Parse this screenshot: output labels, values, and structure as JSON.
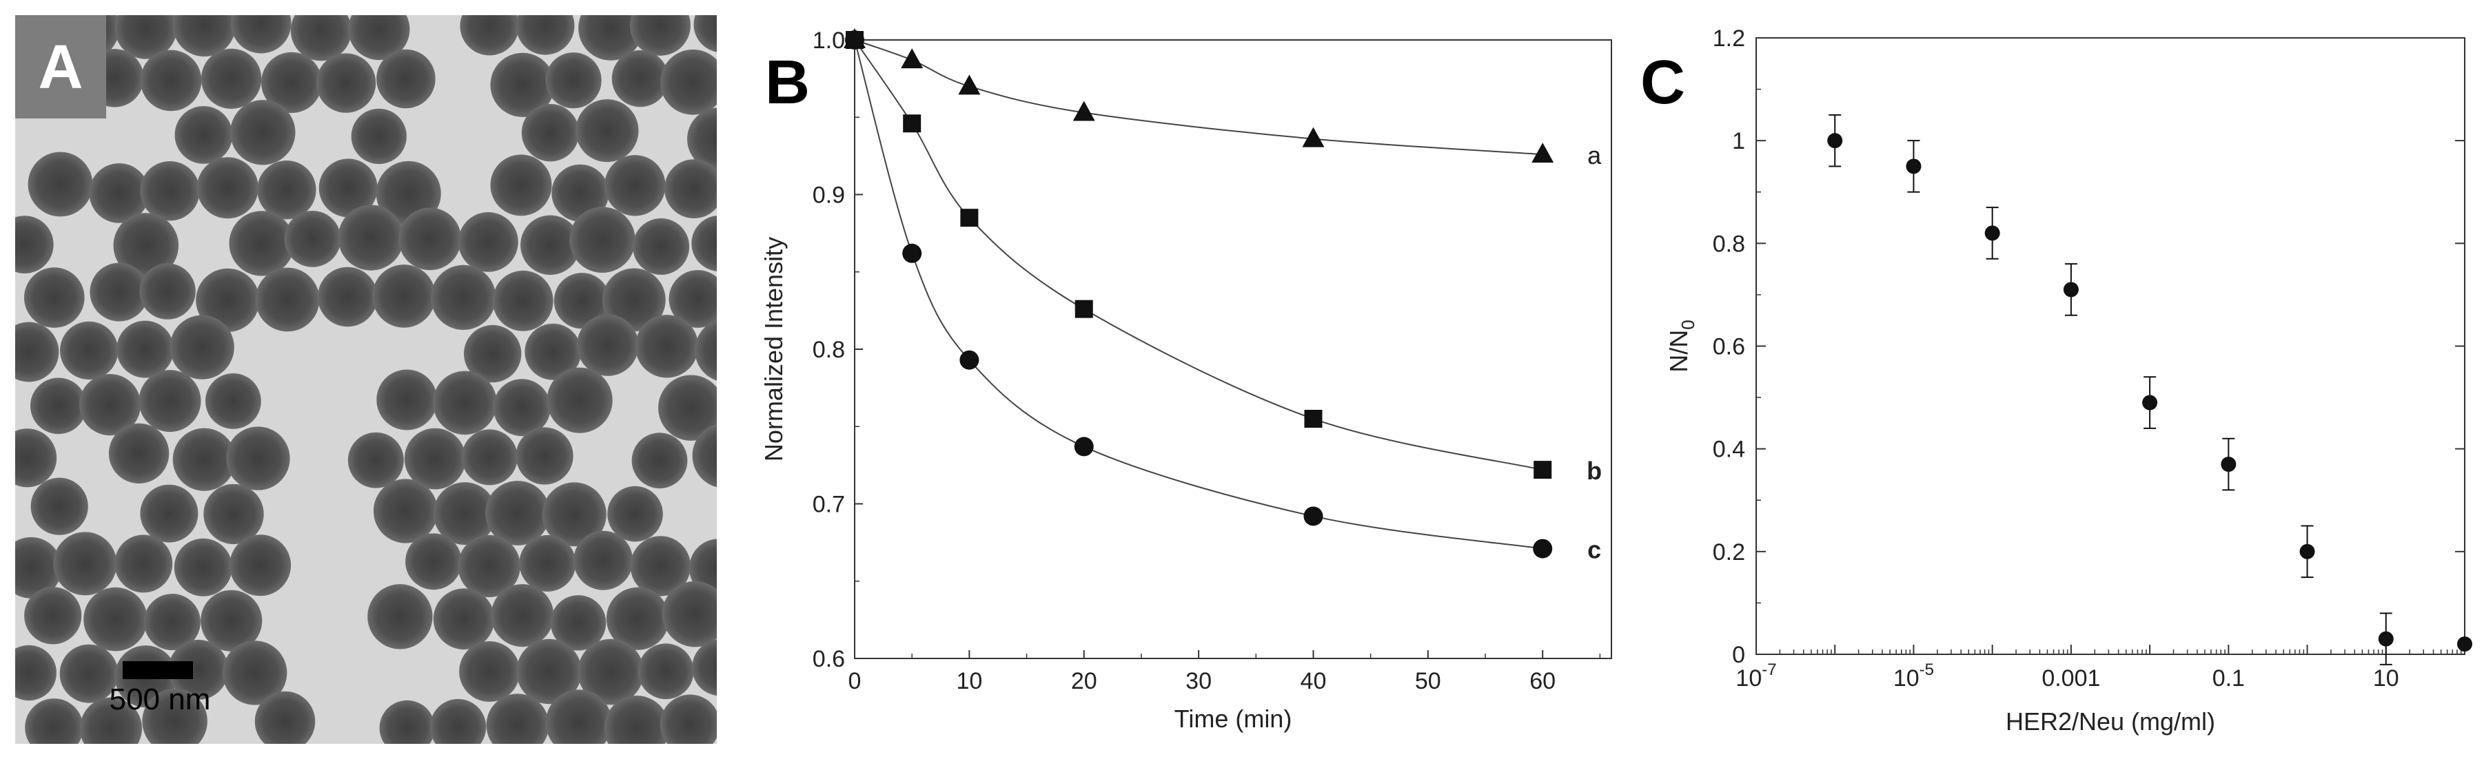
{
  "panel_a": {
    "letter": "A",
    "scale_bar_label": "500 nm",
    "image_description_icon": "tem-micrograph-nanoparticles-icon",
    "colors": {
      "background": "#d9d9d9",
      "particle": "#4a4a4a",
      "label_box": "#7a7a7a"
    }
  },
  "panel_b": {
    "letter": "B"
  },
  "panel_c": {
    "letter": "C"
  },
  "chart_data": [
    {
      "panel": "B",
      "type": "line",
      "title": "",
      "xlabel": "Time (min)",
      "ylabel": "Normalized Intensity",
      "xlim": [
        0,
        66
      ],
      "ylim": [
        0.6,
        1.0
      ],
      "xticks": [
        0,
        10,
        20,
        30,
        40,
        50,
        60
      ],
      "yticks": [
        0.6,
        0.7,
        0.8,
        0.9,
        1.0
      ],
      "ytick_labels": [
        "0.6",
        "0.7",
        "0.8",
        "0.9",
        "1.0"
      ],
      "series": [
        {
          "name": "a",
          "marker": "triangle",
          "label_weight": "normal",
          "x": [
            0,
            5,
            10,
            20,
            40,
            60
          ],
          "y": [
            1.0,
            0.987,
            0.97,
            0.953,
            0.936,
            0.926
          ]
        },
        {
          "name": "b",
          "marker": "square",
          "label_weight": "bold",
          "x": [
            0,
            5,
            10,
            20,
            40,
            60
          ],
          "y": [
            1.0,
            0.946,
            0.885,
            0.826,
            0.755,
            0.722
          ]
        },
        {
          "name": "c",
          "marker": "circle",
          "label_weight": "bold",
          "x": [
            0,
            5,
            10,
            20,
            40,
            60
          ],
          "y": [
            1.0,
            0.862,
            0.793,
            0.737,
            0.692,
            0.671
          ]
        }
      ]
    },
    {
      "panel": "C",
      "type": "scatter",
      "title": "",
      "xlabel": "HER2/Neu (mg/ml)",
      "ylabel": "N/N0",
      "xscale": "log",
      "xlim_log10": [
        -7,
        2
      ],
      "ylim": [
        0,
        1.2
      ],
      "xticks_log10": [
        -7,
        -5,
        -3,
        -1,
        1
      ],
      "xtick_labels": [
        {
          "base": "10",
          "exp": "-7"
        },
        {
          "base": "10",
          "exp": "-5"
        },
        {
          "base": "0.001",
          "exp": ""
        },
        {
          "base": "0.1",
          "exp": ""
        },
        {
          "base": "10",
          "exp": ""
        }
      ],
      "yticks": [
        0,
        0.2,
        0.4,
        0.6,
        0.8,
        1,
        1.2
      ],
      "ytick_labels": [
        "0",
        "0.2",
        "0.4",
        "0.6",
        "0.8",
        "1",
        "1.2"
      ],
      "points": [
        {
          "x_log10": -6,
          "y": 1.0,
          "err": 0.05
        },
        {
          "x_log10": -5,
          "y": 0.95,
          "err": 0.05
        },
        {
          "x_log10": -4,
          "y": 0.82,
          "err": 0.05
        },
        {
          "x_log10": -3,
          "y": 0.71,
          "err": 0.05
        },
        {
          "x_log10": -2,
          "y": 0.49,
          "err": 0.05
        },
        {
          "x_log10": -1,
          "y": 0.37,
          "err": 0.05
        },
        {
          "x_log10": 0,
          "y": 0.2,
          "err": 0.05
        },
        {
          "x_log10": 1,
          "y": 0.03,
          "err": 0.05
        },
        {
          "x_log10": 2,
          "y": 0.02,
          "err": 0
        }
      ]
    }
  ]
}
